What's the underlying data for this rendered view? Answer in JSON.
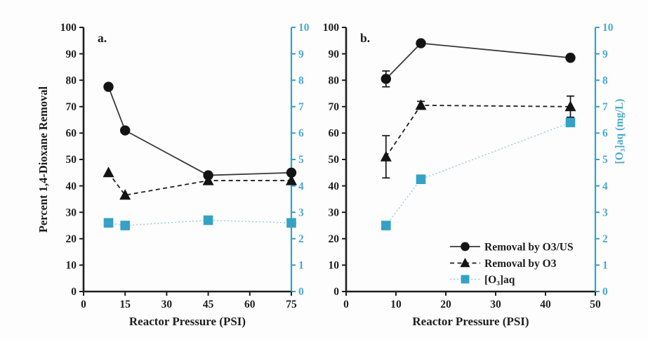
{
  "colors": {
    "background": "#fdfdfd",
    "axis_black": "#1f1f1f",
    "text_black": "#1d1d1d",
    "solid_line": "#3a3a3a",
    "marker_black": "#141414",
    "teal_axis": "#35a1c5",
    "teal_text": "#4aa9cb",
    "teal_marker": "#35a1c5",
    "light_blue_line": "#a4cee1"
  },
  "legend": {
    "entries": [
      "Removal by O3/US",
      "Removal by O3",
      "[O₃]aq"
    ]
  },
  "chart_data": [
    {
      "type": "line",
      "panel_label": "a.",
      "xlabel": "Reactor Pressure (PSI)",
      "ylabel_left": "Percent 1,4-Dioxane Removal",
      "ylabel_right": "",
      "xlim": [
        0,
        75
      ],
      "x_ticks": [
        0,
        15,
        30,
        45,
        60,
        75
      ],
      "ylim_left": [
        0,
        100
      ],
      "y_ticks_left": [
        0,
        10,
        20,
        30,
        40,
        50,
        60,
        70,
        80,
        90,
        100
      ],
      "ylim_right": [
        0,
        10
      ],
      "y_ticks_right": [
        0,
        1,
        2,
        3,
        4,
        5,
        6,
        7,
        8,
        9,
        10
      ],
      "grid": false,
      "series": [
        {
          "name": "Removal by O3/US",
          "axis": "left",
          "marker": "circle",
          "line": "solid",
          "x": [
            9,
            15,
            45,
            75
          ],
          "y": [
            77.5,
            61,
            44,
            45
          ],
          "yerr": [
            0,
            0,
            0,
            0
          ]
        },
        {
          "name": "Removal by O3",
          "axis": "left",
          "marker": "triangle",
          "line": "dashed",
          "x": [
            9,
            15,
            45,
            75
          ],
          "y": [
            45,
            36.5,
            42,
            42
          ],
          "yerr": [
            0,
            0,
            0,
            0
          ]
        },
        {
          "name": "[O₃]aq",
          "axis": "right",
          "marker": "square",
          "line": "dotted",
          "x": [
            9,
            15,
            45,
            75
          ],
          "y": [
            2.6,
            2.5,
            2.7,
            2.6
          ],
          "yerr": [
            0,
            0,
            0,
            0
          ]
        }
      ]
    },
    {
      "type": "line",
      "panel_label": "b.",
      "xlabel": "Reactor Pressure (PSI)",
      "ylabel_left": "",
      "ylabel_right": "[O₃]aq (mg/L)",
      "xlim": [
        0,
        50
      ],
      "x_ticks": [
        0,
        10,
        20,
        30,
        40,
        50
      ],
      "ylim_left": [
        0,
        100
      ],
      "y_ticks_left": [
        0,
        10,
        20,
        30,
        40,
        50,
        60,
        70,
        80,
        90,
        100
      ],
      "ylim_right": [
        0,
        10
      ],
      "y_ticks_right": [
        0,
        1,
        2,
        3,
        4,
        5,
        6,
        7,
        8,
        9,
        10
      ],
      "grid": false,
      "has_legend": true,
      "series": [
        {
          "name": "Removal by O3/US",
          "axis": "left",
          "marker": "circle",
          "line": "solid",
          "x": [
            8,
            15,
            45
          ],
          "y": [
            80.5,
            94,
            88.5
          ],
          "yerr": [
            3,
            0,
            0
          ]
        },
        {
          "name": "Removal by O3",
          "axis": "left",
          "marker": "triangle",
          "line": "dashed",
          "x": [
            8,
            15,
            45
          ],
          "y": [
            51,
            70.5,
            70
          ],
          "yerr": [
            8,
            1.5,
            4
          ]
        },
        {
          "name": "[O₃]aq",
          "axis": "right",
          "marker": "square",
          "line": "dotted",
          "x": [
            8,
            15,
            45
          ],
          "y": [
            2.5,
            4.25,
            6.4
          ],
          "yerr": [
            0,
            0,
            0
          ]
        }
      ]
    }
  ]
}
